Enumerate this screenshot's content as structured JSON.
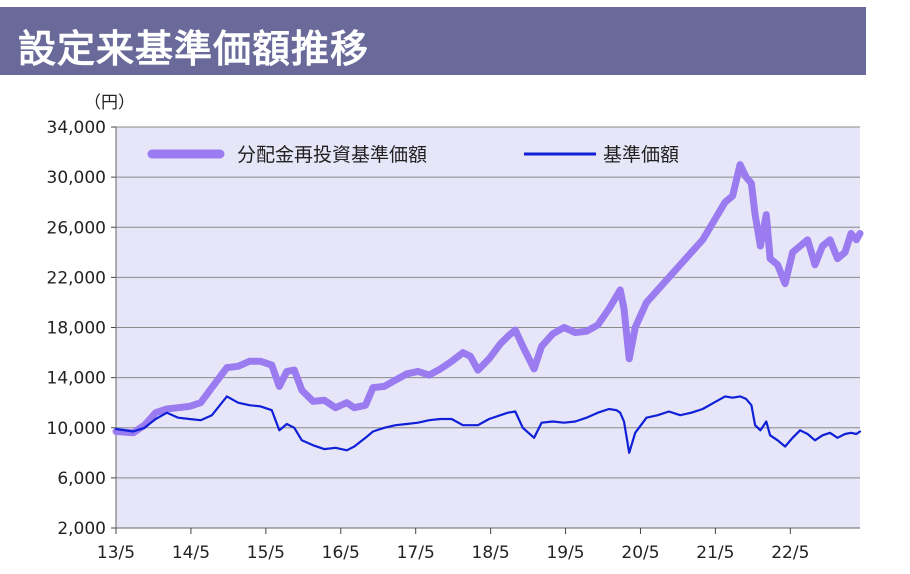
{
  "title": "設定来基準価額推移",
  "chart_data": {
    "type": "line",
    "unit_label": "（円）",
    "ylim": [
      2000,
      34000
    ],
    "yticks": [
      2000,
      6000,
      10000,
      14000,
      18000,
      22000,
      26000,
      30000,
      34000
    ],
    "ytick_labels": [
      "2,000",
      "6,000",
      "10,000",
      "14,000",
      "18,000",
      "22,000",
      "26,000",
      "30,000",
      "34,000"
    ],
    "xtick_labels": [
      "13/5",
      "14/5",
      "15/5",
      "16/5",
      "17/5",
      "18/5",
      "19/5",
      "20/5",
      "21/5",
      "22/5"
    ],
    "grid": true,
    "legend_position": "top",
    "series": [
      {
        "name": "分配金再投資基準価額",
        "color": "#9b7bf0",
        "x": [
          2013.37,
          2013.6,
          2013.75,
          2013.9,
          2014.05,
          2014.2,
          2014.35,
          2014.5,
          2014.65,
          2014.85,
          2015.0,
          2015.15,
          2015.3,
          2015.45,
          2015.55,
          2015.65,
          2015.75,
          2015.85,
          2016.0,
          2016.15,
          2016.3,
          2016.45,
          2016.55,
          2016.7,
          2016.8,
          2016.95,
          2017.1,
          2017.25,
          2017.4,
          2017.55,
          2017.7,
          2017.85,
          2018.0,
          2018.1,
          2018.2,
          2018.35,
          2018.5,
          2018.6,
          2018.7,
          2018.8,
          2018.95,
          2019.05,
          2019.2,
          2019.35,
          2019.5,
          2019.65,
          2019.8,
          2019.95,
          2020.05,
          2020.1,
          2020.15,
          2020.22,
          2020.3,
          2020.45,
          2020.6,
          2020.75,
          2020.9,
          2021.05,
          2021.2,
          2021.35,
          2021.5,
          2021.6,
          2021.7,
          2021.78,
          2021.85,
          2021.9,
          2021.97,
          2022.05,
          2022.1,
          2022.2,
          2022.3,
          2022.4,
          2022.5,
          2022.6,
          2022.7,
          2022.8,
          2022.9,
          2023.0,
          2023.1,
          2023.18,
          2023.25,
          2023.3
        ],
        "values": [
          9700,
          9600,
          10200,
          11200,
          11500,
          11600,
          11700,
          12000,
          13200,
          14800,
          14900,
          15300,
          15300,
          15000,
          13300,
          14500,
          14600,
          13000,
          12100,
          12200,
          11600,
          12000,
          11600,
          11800,
          13200,
          13300,
          13800,
          14300,
          14500,
          14200,
          14700,
          15300,
          16000,
          15700,
          14600,
          15500,
          16700,
          17300,
          17800,
          16500,
          14700,
          16500,
          17500,
          18000,
          17600,
          17700,
          18200,
          19500,
          20500,
          21000,
          19500,
          15500,
          18000,
          20000,
          21000,
          22000,
          23000,
          24000,
          25000,
          26500,
          28000,
          28500,
          31000,
          30000,
          29500,
          27000,
          24500,
          27000,
          23500,
          23000,
          21500,
          24000,
          24500,
          25000,
          23000,
          24500,
          25000,
          23500,
          24000,
          25500,
          25000,
          25500
        ]
      },
      {
        "name": "基準価額",
        "color": "#1020d8",
        "x": [
          2013.37,
          2013.6,
          2013.75,
          2013.9,
          2014.05,
          2014.2,
          2014.35,
          2014.5,
          2014.65,
          2014.85,
          2015.0,
          2015.15,
          2015.3,
          2015.45,
          2015.55,
          2015.65,
          2015.75,
          2015.85,
          2016.0,
          2016.15,
          2016.3,
          2016.45,
          2016.55,
          2016.7,
          2016.8,
          2016.95,
          2017.1,
          2017.25,
          2017.4,
          2017.55,
          2017.7,
          2017.85,
          2018.0,
          2018.1,
          2018.2,
          2018.35,
          2018.5,
          2018.6,
          2018.7,
          2018.8,
          2018.95,
          2019.05,
          2019.2,
          2019.35,
          2019.5,
          2019.65,
          2019.8,
          2019.95,
          2020.05,
          2020.1,
          2020.15,
          2020.22,
          2020.3,
          2020.45,
          2020.6,
          2020.75,
          2020.9,
          2021.05,
          2021.2,
          2021.35,
          2021.5,
          2021.6,
          2021.7,
          2021.78,
          2021.85,
          2021.9,
          2021.97,
          2022.05,
          2022.1,
          2022.2,
          2022.3,
          2022.4,
          2022.5,
          2022.6,
          2022.7,
          2022.8,
          2022.9,
          2023.0,
          2023.1,
          2023.18,
          2023.25,
          2023.3
        ],
        "values": [
          9900,
          9700,
          10000,
          10700,
          11200,
          10800,
          10700,
          10600,
          11000,
          12500,
          12000,
          11800,
          11700,
          11400,
          9800,
          10300,
          10000,
          9000,
          8600,
          8300,
          8400,
          8200,
          8500,
          9200,
          9700,
          10000,
          10200,
          10300,
          10400,
          10600,
          10700,
          10700,
          10200,
          10200,
          10200,
          10700,
          11000,
          11200,
          11300,
          10000,
          9200,
          10400,
          10500,
          10400,
          10500,
          10800,
          11200,
          11500,
          11400,
          11200,
          10500,
          8000,
          9600,
          10800,
          11000,
          11300,
          11000,
          11200,
          11500,
          12000,
          12500,
          12400,
          12500,
          12300,
          11800,
          10200,
          9800,
          10500,
          9400,
          9000,
          8500,
          9200,
          9800,
          9500,
          9000,
          9400,
          9600,
          9200,
          9500,
          9600,
          9500,
          9700
        ]
      }
    ]
  }
}
